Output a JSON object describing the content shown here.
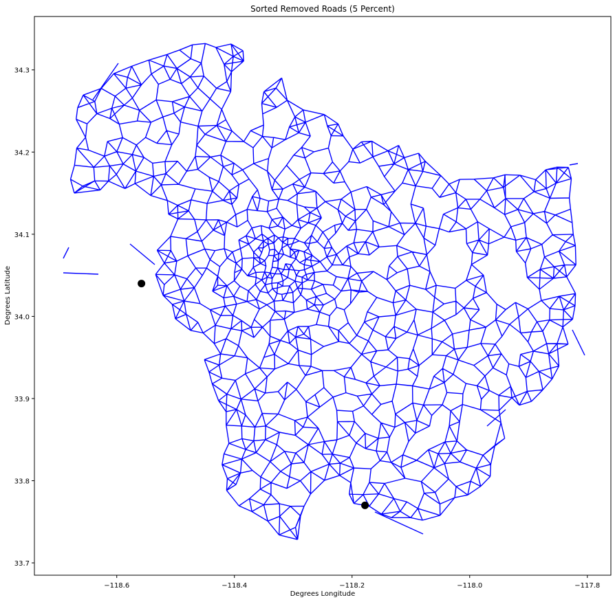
{
  "chart_data": {
    "type": "scatter",
    "title": "Sorted Removed Roads (5 Percent)",
    "xlabel": "Degrees Longitude",
    "ylabel": "Degrees Latitude",
    "xlim": [
      -118.74,
      -117.76
    ],
    "ylim": [
      33.685,
      34.365
    ],
    "x_ticks": [
      -118.6,
      -118.4,
      -118.2,
      -118.0,
      -117.8
    ],
    "x_tick_labels": [
      "−118.6",
      "−118.4",
      "−118.2",
      "−118.0",
      "−117.8"
    ],
    "y_ticks": [
      33.7,
      33.8,
      33.9,
      34.0,
      34.1,
      34.2,
      34.3
    ],
    "y_tick_labels": [
      "33.7",
      "33.8",
      "33.9",
      "34.0",
      "34.1",
      "34.2",
      "34.3"
    ],
    "grid": false,
    "network_color": "#0000ff",
    "marker_color": "#000000",
    "markers": [
      {
        "x": -118.558,
        "y": 34.04
      },
      {
        "x": -118.178,
        "y": 33.77
      }
    ]
  }
}
